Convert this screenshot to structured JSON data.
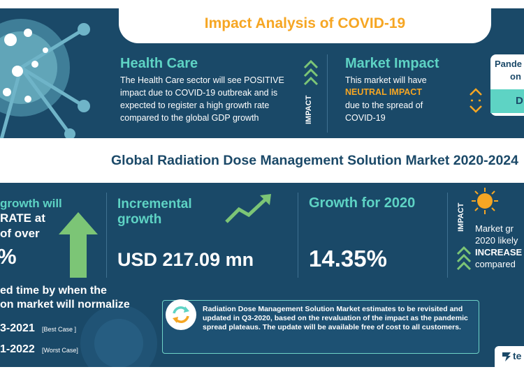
{
  "header": {
    "title": "Impact Analysis of COVID-19"
  },
  "health_care": {
    "heading": "Health Care",
    "text": "The Health Care sector will see POSITIVE impact due to COVID-19 outbreak and is expected to register a high growth rate compared to the global GDP growth"
  },
  "impact_label": "IMPACT",
  "market_impact": {
    "heading": "Market Impact",
    "line1": "This market will have",
    "highlight": "NEUTRAL IMPACT",
    "line2": "due to the spread of",
    "line3": "COVID-19"
  },
  "pandemic_tab": {
    "line1": "Pande",
    "line2": "on",
    "line3": "D"
  },
  "market_title": "Global Radiation Dose Management Solution Market 2020-2024",
  "left_stat": {
    "line1": "growth will",
    "line2": "RATE at",
    "line3": "of over",
    "value": "%"
  },
  "incremental": {
    "label_line1": "Incremental",
    "label_line2": "growth",
    "value": "USD 217.09 mn"
  },
  "growth_2020": {
    "label": "Growth for 2020",
    "value": "14.35%"
  },
  "right_impact": {
    "line1": "Market gr",
    "line2": "2020 likely",
    "highlight": "INCREASE",
    "line3": "compared"
  },
  "normalize": {
    "line1": "ed time by when the",
    "line2": "on market will normalize",
    "best": "3-2021",
    "best_tag": "[Best Case ]",
    "worst": "1-2022",
    "worst_tag": "[Worst Case]"
  },
  "note": "Radiation Dose Management Solution Market estimates to be revisited and updated in Q3-2020, based on the revaluation of the impact as the pandemic spread plateaus. The update will be available free of cost to all customers.",
  "brand": {
    "text": "te"
  },
  "colors": {
    "navy": "#1a4968",
    "teal": "#5ed3c4",
    "orange": "#f6a623",
    "green": "#7cc576"
  }
}
